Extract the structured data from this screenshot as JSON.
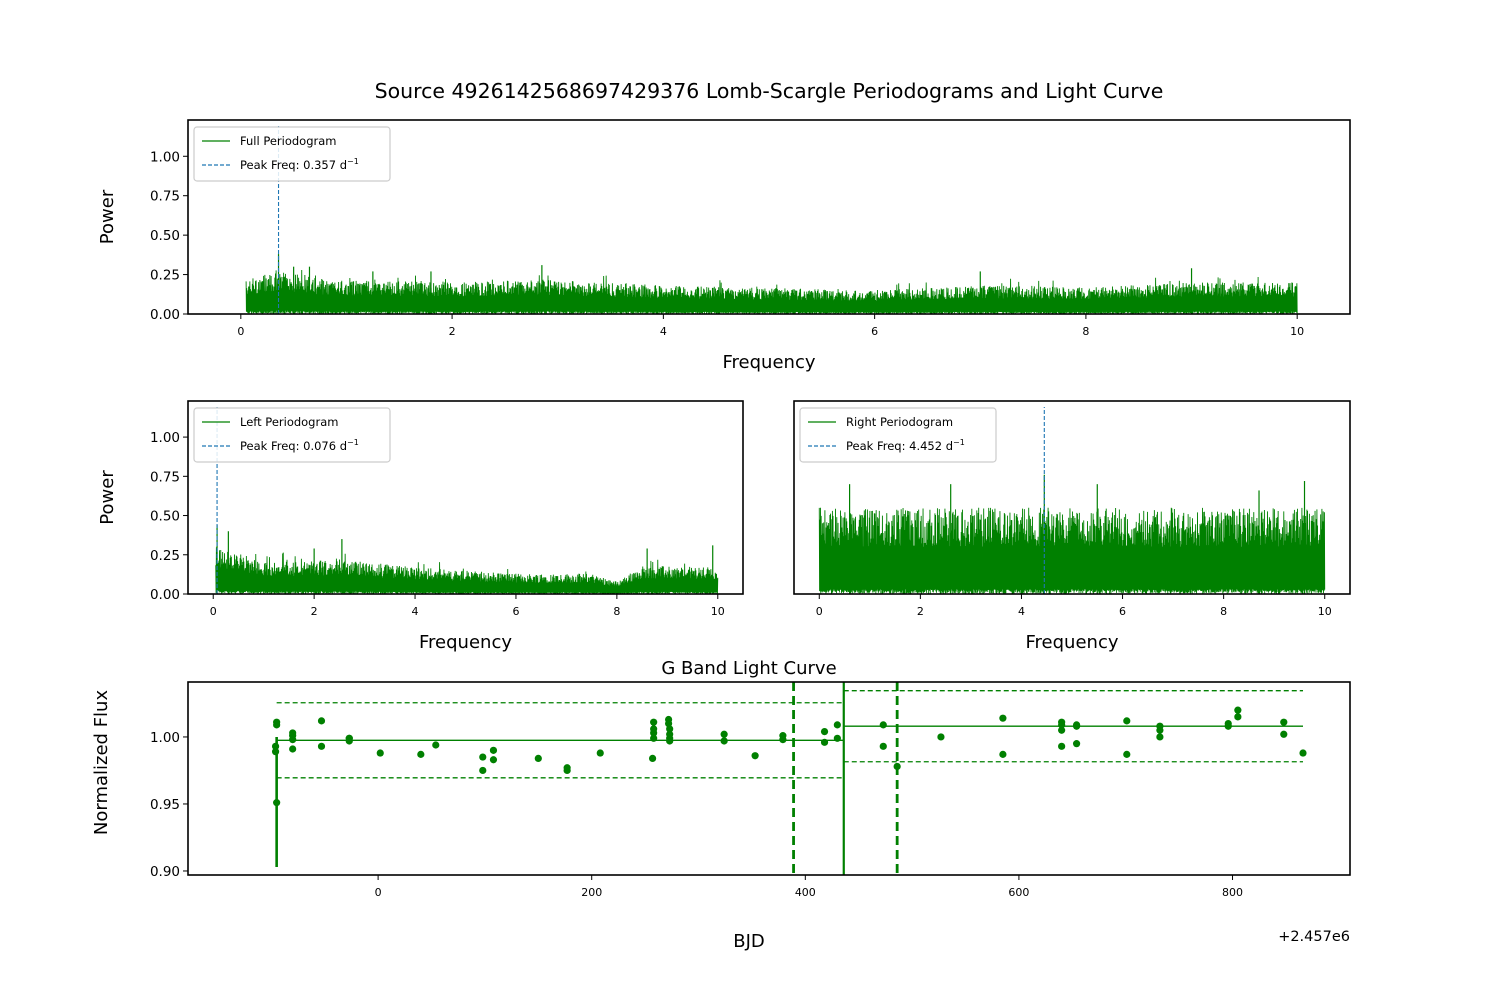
{
  "figure": {
    "title": "Source 4926142568697429376 Lomb-Scargle Periodograms and Light Curve",
    "colors": {
      "series": "#008000",
      "peak": "#1f77b4",
      "axes": "#000000"
    }
  },
  "chart_data": [
    {
      "type": "line",
      "id": "full",
      "xlabel": "Frequency",
      "ylabel": "Power",
      "xlim": [
        -0.5,
        10.5
      ],
      "ylim": [
        0,
        1.23
      ],
      "xticks": [
        0,
        2,
        4,
        6,
        8,
        10
      ],
      "yticks": [
        0.0,
        0.25,
        0.5,
        0.75,
        1.0
      ],
      "yticklabels": [
        "0.00",
        "0.25",
        "0.50",
        "0.75",
        "1.00"
      ],
      "freq_range": [
        0.05,
        10.0
      ],
      "noise_level": 0.1,
      "envelope": [
        [
          0.05,
          0.22
        ],
        [
          0.36,
          0.27
        ],
        [
          0.8,
          0.22
        ],
        [
          2.0,
          0.2
        ],
        [
          2.8,
          0.22
        ],
        [
          4.0,
          0.18
        ],
        [
          6.0,
          0.15
        ],
        [
          7.0,
          0.18
        ],
        [
          8.0,
          0.17
        ],
        [
          9.0,
          0.2
        ],
        [
          10.0,
          0.2
        ]
      ],
      "peaks": [
        [
          0.357,
          0.38
        ],
        [
          2.85,
          0.31
        ],
        [
          9.0,
          0.29
        ],
        [
          0.5,
          0.3
        ],
        [
          0.65,
          0.3
        ],
        [
          1.25,
          0.27
        ],
        [
          7.0,
          0.27
        ],
        [
          1.8,
          0.27
        ]
      ],
      "peak_freq": 0.357,
      "legend": {
        "position": "upper-left",
        "entries": [
          {
            "label": "Full Periodogram",
            "style": "solid"
          },
          {
            "label": "Peak Freq: 0.357 d",
            "sup": "−1",
            "style": "dashed"
          }
        ]
      }
    },
    {
      "type": "line",
      "id": "left",
      "xlabel": "Frequency",
      "ylabel": "Power",
      "xlim": [
        -0.5,
        10.5
      ],
      "ylim": [
        0,
        1.23
      ],
      "xticks": [
        0,
        2,
        4,
        6,
        8,
        10
      ],
      "yticks": [
        0.0,
        0.25,
        0.5,
        0.75,
        1.0
      ],
      "yticklabels": [
        "0.00",
        "0.25",
        "0.50",
        "0.75",
        "1.00"
      ],
      "freq_range": [
        0.05,
        10.0
      ],
      "noise_level": 0.1,
      "envelope": [
        [
          0.05,
          0.3
        ],
        [
          0.5,
          0.26
        ],
        [
          1.0,
          0.2
        ],
        [
          2.5,
          0.22
        ],
        [
          4.0,
          0.17
        ],
        [
          6.0,
          0.13
        ],
        [
          7.5,
          0.13
        ],
        [
          8.0,
          0.08
        ],
        [
          8.5,
          0.18
        ],
        [
          10.0,
          0.17
        ]
      ],
      "peaks": [
        [
          0.076,
          0.44
        ],
        [
          0.3,
          0.4
        ],
        [
          2.55,
          0.35
        ],
        [
          8.6,
          0.29
        ],
        [
          9.9,
          0.31
        ],
        [
          2.0,
          0.29
        ]
      ],
      "peak_freq": 0.076,
      "legend": {
        "position": "upper-left",
        "entries": [
          {
            "label": "Left Periodogram",
            "style": "solid"
          },
          {
            "label": "Peak Freq: 0.076 d",
            "sup": "−1",
            "style": "dashed"
          }
        ]
      }
    },
    {
      "type": "line",
      "id": "right",
      "xlabel": "Frequency",
      "ylabel": "",
      "xlim": [
        -0.5,
        10.5
      ],
      "ylim": [
        0,
        1.23
      ],
      "xticks": [
        0,
        2,
        4,
        6,
        8,
        10
      ],
      "yticks": [],
      "freq_range": [
        0.0,
        10.0
      ],
      "noise_level": 0.45,
      "envelope": [
        [
          0.0,
          0.5
        ],
        [
          10.0,
          0.5
        ]
      ],
      "peaks": [
        [
          4.452,
          0.76
        ],
        [
          2.6,
          0.7
        ],
        [
          0.6,
          0.7
        ],
        [
          9.6,
          0.72
        ],
        [
          5.5,
          0.7
        ],
        [
          8.7,
          0.66
        ]
      ],
      "peak_freq": 4.452,
      "legend": {
        "position": "upper-left",
        "entries": [
          {
            "label": "Right Periodogram",
            "style": "solid"
          },
          {
            "label": "Peak Freq: 4.452 d",
            "sup": "−1",
            "style": "dashed"
          }
        ]
      }
    },
    {
      "type": "scatter",
      "id": "lightcurve",
      "title": "G Band Light Curve",
      "xlabel": "BJD",
      "ylabel": "Normalized Flux",
      "offset_label": "+2.457e6",
      "xlim": [
        -178,
        910
      ],
      "ylim": [
        0.897,
        1.041
      ],
      "xticks": [
        0,
        200,
        400,
        600,
        800
      ],
      "yticks": [
        0.9,
        0.95,
        1.0
      ],
      "yticklabels": [
        "0.90",
        "0.95",
        "1.00"
      ],
      "points": [
        [
          -95,
          1.011
        ],
        [
          -95,
          1.009
        ],
        [
          -96,
          0.993
        ],
        [
          -96,
          0.989
        ],
        [
          -95,
          0.951
        ],
        [
          -80,
          1.003
        ],
        [
          -80,
          1.001
        ],
        [
          -80,
          0.998
        ],
        [
          -80,
          0.991
        ],
        [
          -53,
          1.012
        ],
        [
          -53,
          0.993
        ],
        [
          -27,
          0.999
        ],
        [
          -27,
          0.997
        ],
        [
          -27,
          0.999
        ],
        [
          2,
          0.988
        ],
        [
          40,
          0.987
        ],
        [
          54,
          0.994
        ],
        [
          98,
          0.985
        ],
        [
          98,
          0.975
        ],
        [
          108,
          0.99
        ],
        [
          108,
          0.983
        ],
        [
          150,
          0.984
        ],
        [
          177,
          0.977
        ],
        [
          177,
          0.975
        ],
        [
          208,
          0.988
        ],
        [
          258,
          1.011
        ],
        [
          258,
          1.006
        ],
        [
          258,
          1.003
        ],
        [
          258,
          0.999
        ],
        [
          257,
          0.984
        ],
        [
          272,
          1.013
        ],
        [
          272,
          1.01
        ],
        [
          273,
          1.006
        ],
        [
          273,
          1.002
        ],
        [
          273,
          0.999
        ],
        [
          273,
          0.997
        ],
        [
          324,
          1.002
        ],
        [
          324,
          0.997
        ],
        [
          353,
          0.986
        ],
        [
          379,
          1.001
        ],
        [
          379,
          0.998
        ],
        [
          418,
          1.004
        ],
        [
          418,
          0.996
        ],
        [
          430,
          1.009
        ],
        [
          430,
          0.999
        ],
        [
          473,
          1.009
        ],
        [
          473,
          0.993
        ],
        [
          486,
          0.978
        ],
        [
          527,
          1.0
        ],
        [
          585,
          1.014
        ],
        [
          585,
          0.987
        ],
        [
          640,
          1.011
        ],
        [
          640,
          1.009
        ],
        [
          640,
          1.005
        ],
        [
          640,
          0.993
        ],
        [
          654,
          1.009
        ],
        [
          654,
          1.008
        ],
        [
          654,
          0.995
        ],
        [
          701,
          1.012
        ],
        [
          701,
          0.987
        ],
        [
          732,
          1.008
        ],
        [
          732,
          1.005
        ],
        [
          732,
          1.0
        ],
        [
          796,
          1.01
        ],
        [
          796,
          1.008
        ],
        [
          805,
          1.02
        ],
        [
          805,
          1.015
        ],
        [
          848,
          1.011
        ],
        [
          848,
          1.002
        ],
        [
          866,
          0.988
        ]
      ],
      "error_bar": {
        "x": -95,
        "ymin": 0.903,
        "ymax": 1.0
      },
      "segments": [
        {
          "x0": -95,
          "x1": 436,
          "mean": 0.9975,
          "upper": 1.0255,
          "lower": 0.9695
        },
        {
          "x0": 436,
          "x1": 866,
          "mean": 1.008,
          "upper": 1.0345,
          "lower": 0.9815
        }
      ],
      "vlines": [
        {
          "x": 389,
          "style": "dashed"
        },
        {
          "x": 436,
          "style": "solid"
        },
        {
          "x": 486,
          "style": "dashed"
        }
      ]
    }
  ]
}
